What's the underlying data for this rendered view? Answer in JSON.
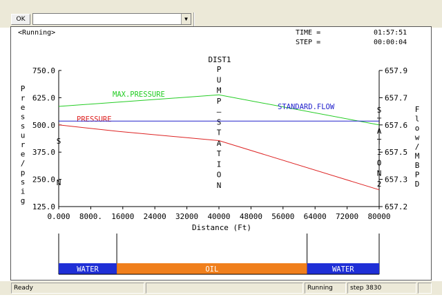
{
  "toolbar": {
    "ok_label": "OK",
    "combo_value": "",
    "combo_arrow": "▼"
  },
  "status": {
    "state": "<Running>",
    "time_label": "TIME =",
    "time_value": "01:57:51",
    "step_label": "STEP =",
    "step_value": "00:00:04"
  },
  "chart_data": {
    "type": "line",
    "title": "DIST1",
    "xlabel": "Distance (Ft)",
    "ylabel_left": "Pressure/psig",
    "ylabel_right": "Flow/MBPD",
    "x_ticks": [
      "0.000",
      "8000.",
      "16000",
      "24000",
      "32000",
      "40000",
      "48000",
      "56000",
      "64000",
      "72000",
      "80000"
    ],
    "x_range": [
      0,
      80000
    ],
    "y_left_ticks": [
      "750.0",
      "625.0",
      "500.0",
      "375.0",
      "250.0",
      "125.0"
    ],
    "y_left_range": [
      125,
      750
    ],
    "y_right_ticks": [
      "657.9",
      "657.7",
      "657.6",
      "657.5",
      "657.3",
      "657.2"
    ],
    "y_right_range": [
      657.2,
      657.9
    ],
    "series": [
      {
        "name": "MAX.PRESSURE",
        "color": "#22cc22",
        "axis": "left",
        "x": [
          0,
          40000,
          80000
        ],
        "y": [
          585,
          638,
          500
        ]
      },
      {
        "name": "PRESSURE",
        "color": "#dd2222",
        "axis": "left",
        "x": [
          0,
          15000,
          40000,
          80000
        ],
        "y": [
          500,
          470,
          428,
          202
        ]
      },
      {
        "name": "STANDARD.FLOW",
        "color": "#2222cc",
        "axis": "right",
        "x": [
          0,
          80000
        ],
        "y": [
          657.64,
          657.64
        ]
      }
    ],
    "station_labels": [
      {
        "text": "SN",
        "x": 0
      },
      {
        "text": "PUMP STATION",
        "x": 40000
      },
      {
        "text": "STATION2",
        "x": 80000
      }
    ]
  },
  "batches": [
    {
      "label": "WATER",
      "start": 0,
      "end": 14500,
      "color": "#1f2fd6"
    },
    {
      "label": "OIL",
      "start": 14500,
      "end": 62000,
      "color": "#f07f1c"
    },
    {
      "label": "WATER",
      "start": 62000,
      "end": 80000,
      "color": "#1f2fd6"
    }
  ],
  "statusbar": {
    "ready": "Ready",
    "mode": "Running",
    "step": "step 3830"
  }
}
